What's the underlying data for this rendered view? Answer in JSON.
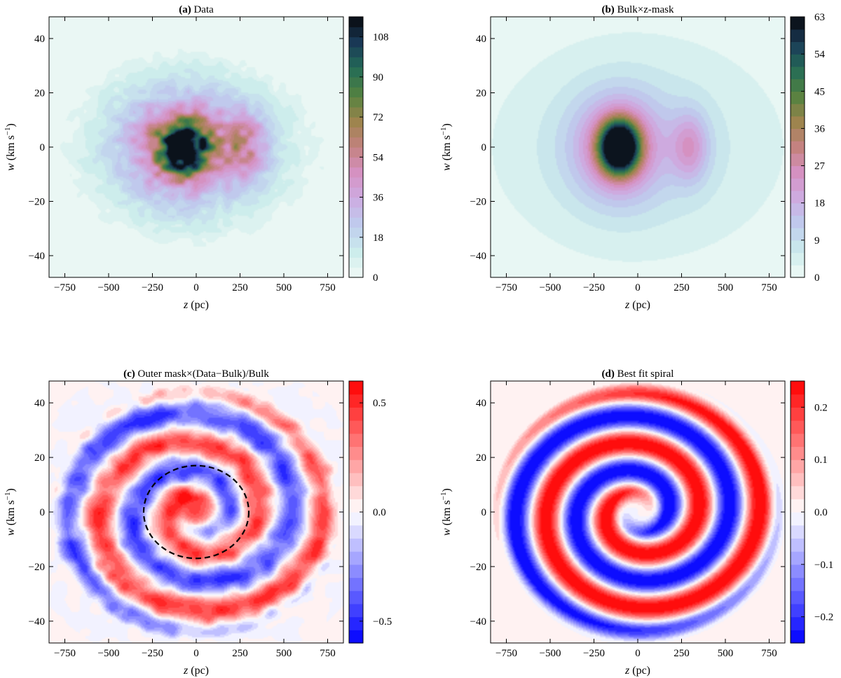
{
  "chart_data": [
    {
      "type": "heatmap",
      "title_prefix": "(a)",
      "title_text": "Data",
      "xlabel_var": "z",
      "xlabel_unit": " (pc)",
      "ylabel_var": "w",
      "ylabel_unit": " (km s",
      "ylabel_sup": "−1",
      "ylabel_close": ")",
      "xlim": [
        -840,
        840
      ],
      "ylim": [
        -48,
        48
      ],
      "xticks": [
        -750,
        -500,
        -250,
        0,
        250,
        500,
        750
      ],
      "xtick_labels": [
        "−750",
        "−500",
        "−250",
        "0",
        "250",
        "500",
        "750"
      ],
      "yticks": [
        -40,
        -20,
        0,
        20,
        40
      ],
      "ytick_labels": [
        "−40",
        "−20",
        "0",
        "20",
        "40"
      ],
      "colormap": "cubehelix_r",
      "cbar_range": [
        0,
        117
      ],
      "cbar_levels": 26,
      "cbar_ticks": [
        0,
        18,
        36,
        54,
        72,
        90,
        108
      ],
      "cbar_tick_labels": [
        "0",
        "18",
        "36",
        "54",
        "72",
        "90",
        "108"
      ],
      "field": {
        "kind": "blobs",
        "noise": true,
        "blobs": [
          {
            "z": -75,
            "w": 0,
            "sz": 95,
            "sw": 6,
            "amp": 110
          },
          {
            "z": -90,
            "w": 0,
            "sz": 230,
            "sw": 14,
            "amp": 42
          },
          {
            "z": 280,
            "w": 0,
            "sz": 90,
            "sw": 9,
            "amp": 34
          },
          {
            "z": 0,
            "w": 0,
            "sz": 500,
            "sw": 22,
            "amp": 15
          }
        ]
      }
    },
    {
      "type": "heatmap",
      "title_prefix": "(b)",
      "title_text": "Bulk×z-mask",
      "xlabel_var": "z",
      "xlabel_unit": " (pc)",
      "ylabel_var": "w",
      "ylabel_unit": " (km s",
      "ylabel_sup": "−1",
      "ylabel_close": ")",
      "xlim": [
        -840,
        840
      ],
      "ylim": [
        -48,
        48
      ],
      "xticks": [
        -750,
        -500,
        -250,
        0,
        250,
        500,
        750
      ],
      "xtick_labels": [
        "−750",
        "−500",
        "−250",
        "0",
        "250",
        "500",
        "750"
      ],
      "yticks": [
        -40,
        -20,
        0,
        20,
        40
      ],
      "ytick_labels": [
        "−40",
        "−20",
        "0",
        "20",
        "40"
      ],
      "colormap": "cubehelix_r",
      "cbar_range": [
        0,
        63
      ],
      "cbar_levels": 21,
      "cbar_ticks": [
        0,
        9,
        18,
        27,
        36,
        45,
        54,
        63
      ],
      "cbar_tick_labels": [
        "0",
        "9",
        "18",
        "27",
        "36",
        "45",
        "54",
        "63"
      ],
      "field": {
        "kind": "blobs",
        "noise": false,
        "blobs": [
          {
            "z": -105,
            "w": 0,
            "sz": 75,
            "sw": 6.5,
            "amp": 62
          },
          {
            "z": -110,
            "w": 0,
            "sz": 175,
            "sw": 13,
            "amp": 23
          },
          {
            "z": 300,
            "w": 0,
            "sz": 75,
            "sw": 9,
            "amp": 16
          },
          {
            "z": 0,
            "w": 0,
            "sz": 560,
            "sw": 28,
            "amp": 9
          }
        ]
      }
    },
    {
      "type": "heatmap",
      "title_prefix": "(c)",
      "title_text": "Outer mask×(Data−Bulk)/Bulk",
      "xlabel_var": "z",
      "xlabel_unit": " (pc)",
      "ylabel_var": "w",
      "ylabel_unit": " (km s",
      "ylabel_sup": "−1",
      "ylabel_close": ")",
      "xlim": [
        -840,
        840
      ],
      "ylim": [
        -48,
        48
      ],
      "xticks": [
        -750,
        -500,
        -250,
        0,
        250,
        500,
        750
      ],
      "xtick_labels": [
        "−750",
        "−500",
        "−250",
        "0",
        "250",
        "500",
        "750"
      ],
      "yticks": [
        -40,
        -20,
        0,
        20,
        40
      ],
      "ytick_labels": [
        "−40",
        "−20",
        "0",
        "20",
        "40"
      ],
      "colormap": "bwr",
      "cbar_range": [
        -0.6,
        0.6
      ],
      "cbar_levels": 20,
      "cbar_ticks": [
        -0.5,
        0.0,
        0.5
      ],
      "cbar_tick_labels": [
        "−0.5",
        "0.0",
        "0.5"
      ],
      "inner_circle": {
        "z_radius": 300,
        "w_radius": 17
      },
      "field": {
        "kind": "spiral",
        "amp": 0.42,
        "noise": true,
        "r_min": 0.12,
        "r_max": 1.0,
        "z_scale": 800,
        "w_scale": 45,
        "wind": 2.1,
        "phase": 0.4,
        "center_amp": 0.45
      }
    },
    {
      "type": "heatmap",
      "title_prefix": "(d)",
      "title_text": "Best fit spiral",
      "xlabel_var": "z",
      "xlabel_unit": " (pc)",
      "ylabel_var": "w",
      "ylabel_unit": " (km s",
      "ylabel_sup": "−1",
      "ylabel_close": ")",
      "xlim": [
        -840,
        840
      ],
      "ylim": [
        -48,
        48
      ],
      "xticks": [
        -750,
        -500,
        -250,
        0,
        250,
        500,
        750
      ],
      "xtick_labels": [
        "−750",
        "−500",
        "−250",
        "0",
        "250",
        "500",
        "750"
      ],
      "yticks": [
        -40,
        -20,
        0,
        20,
        40
      ],
      "ytick_labels": [
        "−40",
        "−20",
        "0",
        "20",
        "40"
      ],
      "colormap": "bwr",
      "cbar_range": [
        -0.25,
        0.25
      ],
      "cbar_levels": 20,
      "cbar_ticks": [
        -0.2,
        -0.1,
        0.0,
        0.1,
        0.2
      ],
      "cbar_tick_labels": [
        "−0.2",
        "−0.1",
        "0.0",
        "0.1",
        "0.2"
      ],
      "field": {
        "kind": "spiral",
        "amp": 0.26,
        "noise": false,
        "r_min": 0.18,
        "r_max": 1.0,
        "z_scale": 800,
        "w_scale": 46,
        "wind": 2.3,
        "phase": 0.0,
        "center_amp": 0.0
      }
    }
  ]
}
